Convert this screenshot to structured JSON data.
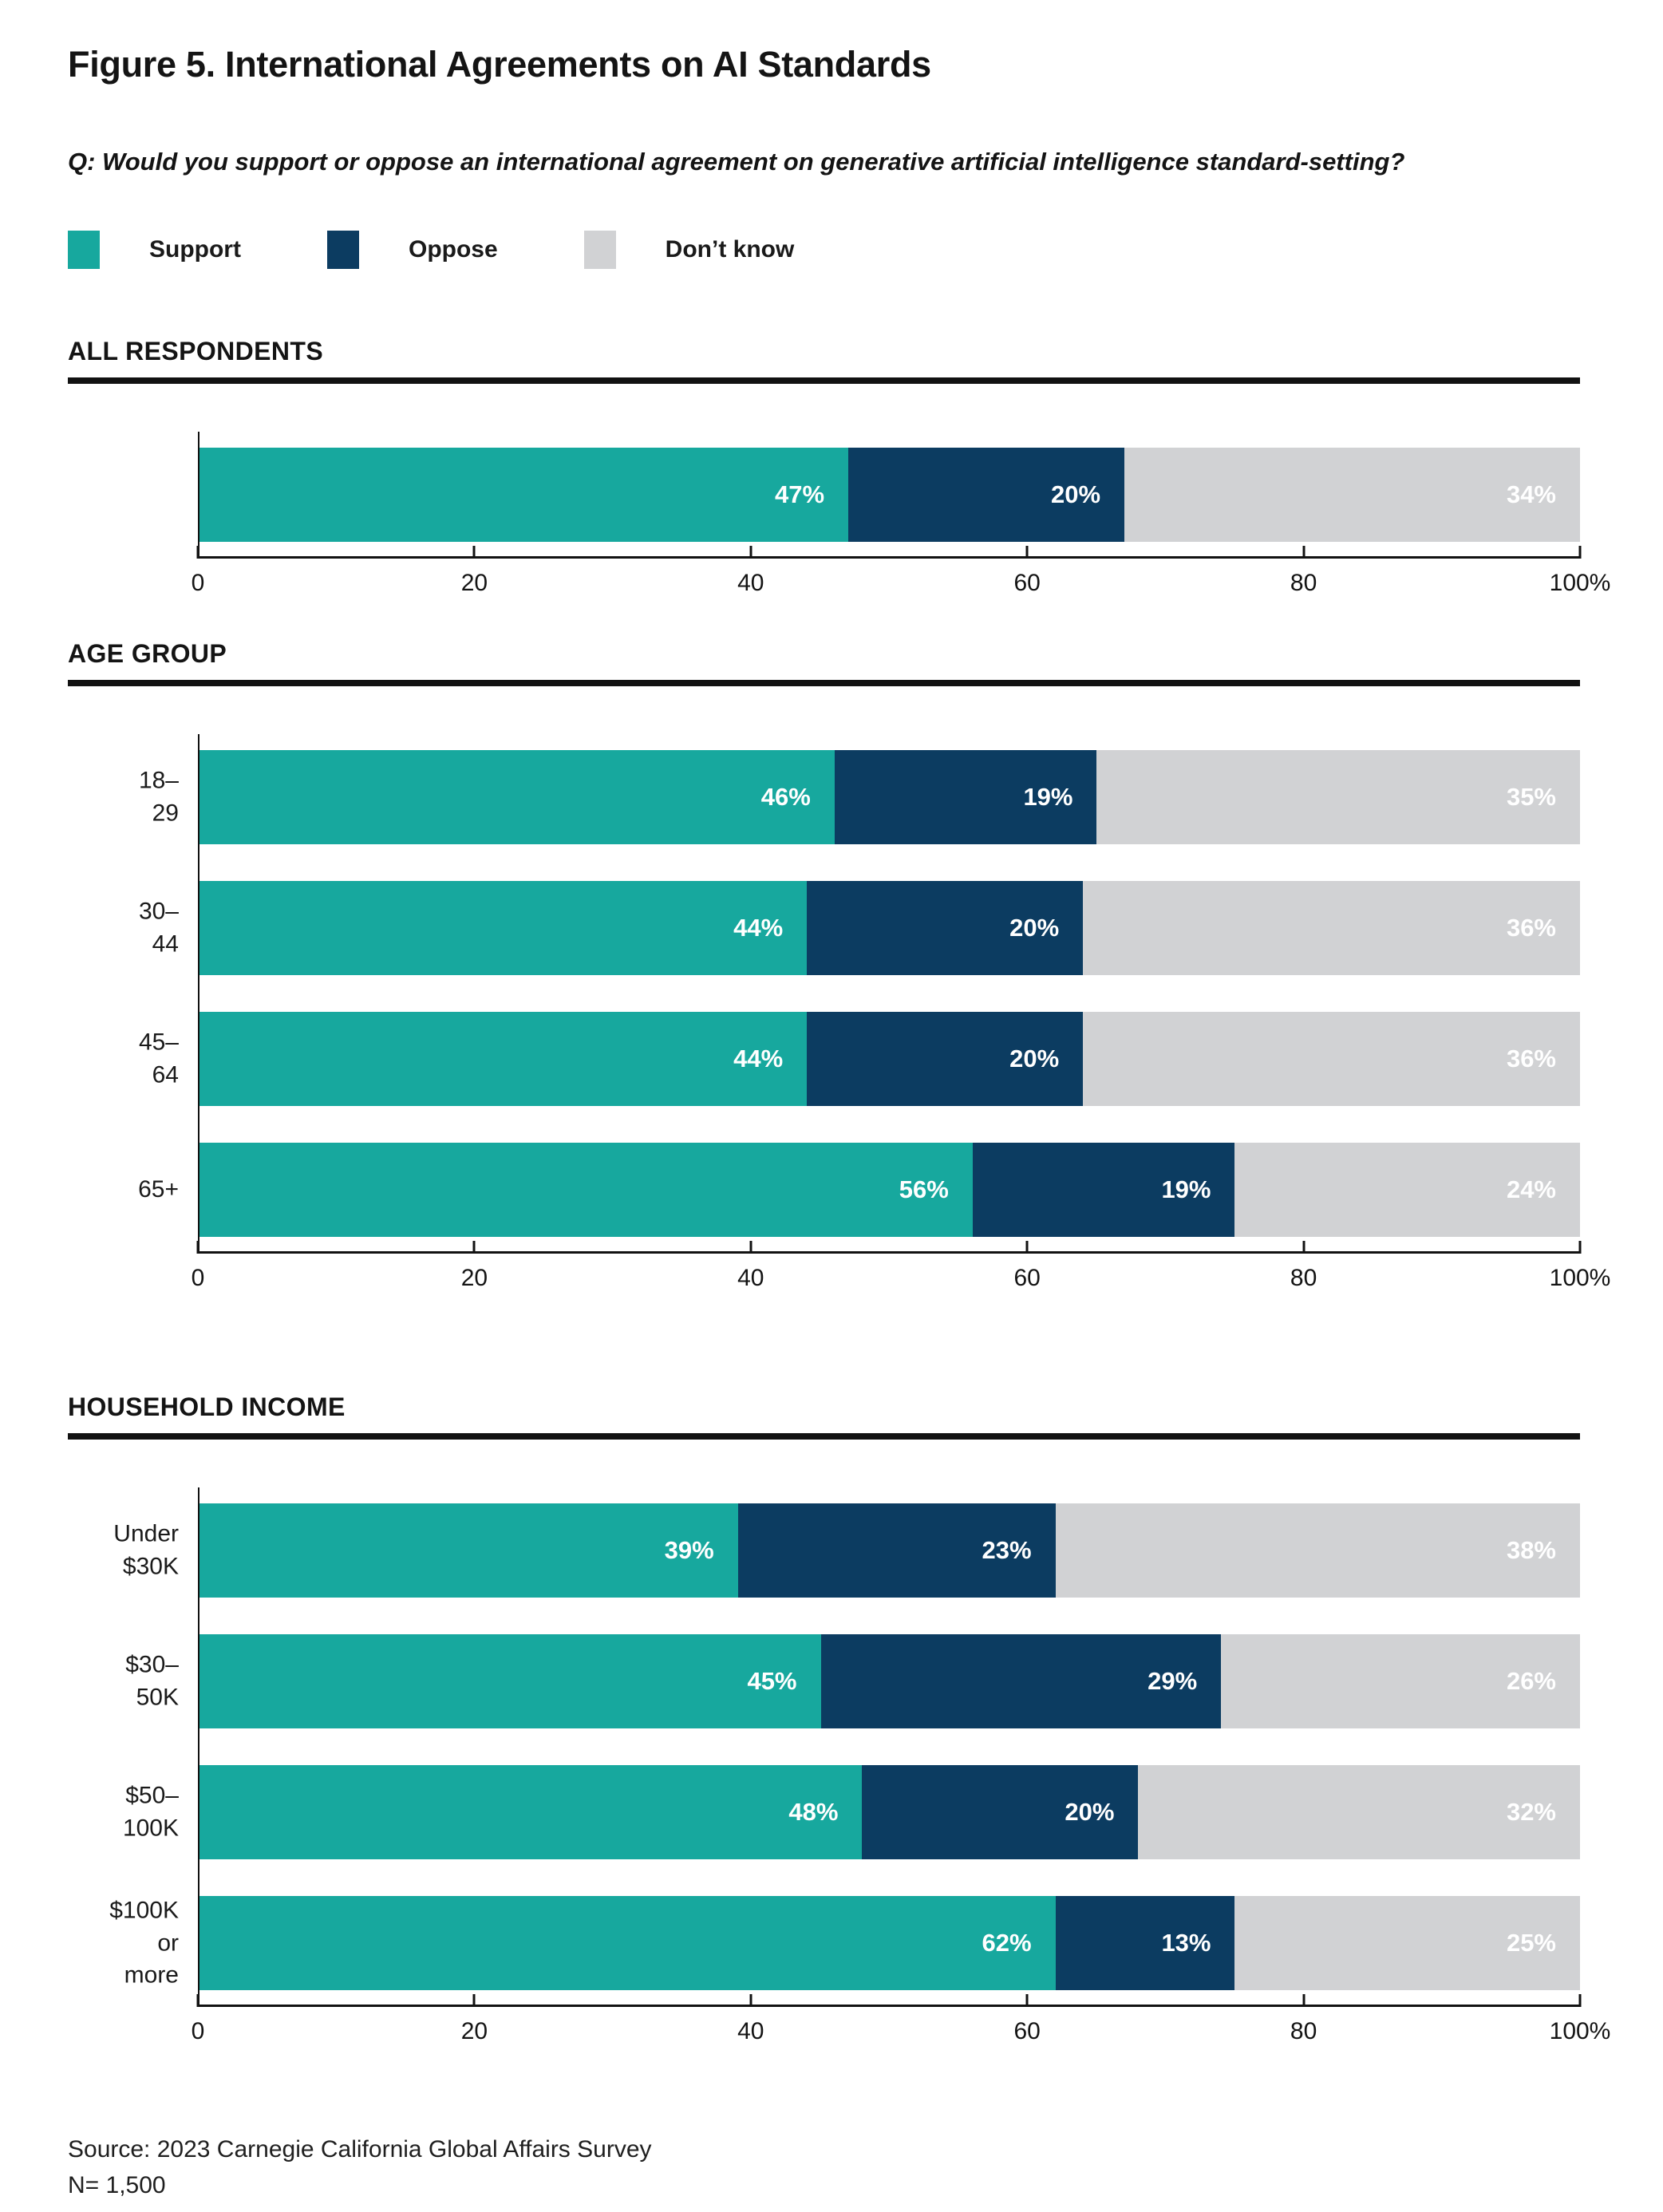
{
  "title": "Figure 5. International Agreements on AI Standards",
  "question": "Q: Would you support or oppose an international agreement on generative artificial intelligence standard-setting?",
  "colors": {
    "support": "#17A89E",
    "oppose": "#0C3C61",
    "dont_know": "#D1D2D4",
    "rule": "#121212",
    "value_label": "#ffffff"
  },
  "legend": [
    {
      "label": "Support",
      "color": "#17A89E"
    },
    {
      "label": "Oppose",
      "color": "#0C3C61"
    },
    {
      "label": "Don’t know",
      "color": "#D1D2D4"
    }
  ],
  "chart_data": [
    {
      "type": "bar",
      "orientation": "horizontal",
      "stacked": true,
      "title": "ALL RESPONDENTS",
      "categories": [
        ""
      ],
      "series": [
        {
          "name": "Support",
          "color": "#17A89E",
          "values": [
            47
          ]
        },
        {
          "name": "Oppose",
          "color": "#0C3C61",
          "values": [
            20
          ]
        },
        {
          "name": "Don’t know",
          "color": "#D1D2D4",
          "values": [
            34
          ]
        }
      ],
      "xlim": [
        0,
        100
      ],
      "grid": false,
      "legend_position": "top",
      "xtick_positions": [
        0,
        20,
        40,
        60,
        80,
        100
      ],
      "xtick_labels": [
        "0",
        "20",
        "40",
        "60",
        "80",
        "100%"
      ]
    },
    {
      "type": "bar",
      "orientation": "horizontal",
      "stacked": true,
      "title": "AGE GROUP",
      "categories": [
        "18–29",
        "30–44",
        "45–64",
        "65+"
      ],
      "series": [
        {
          "name": "Support",
          "color": "#17A89E",
          "values": [
            46,
            44,
            44,
            56
          ]
        },
        {
          "name": "Oppose",
          "color": "#0C3C61",
          "values": [
            19,
            20,
            20,
            19
          ]
        },
        {
          "name": "Don’t know",
          "color": "#D1D2D4",
          "values": [
            35,
            36,
            36,
            24
          ]
        }
      ],
      "xlim": [
        0,
        100
      ],
      "grid": false,
      "xtick_positions": [
        0,
        20,
        40,
        60,
        80,
        100
      ],
      "xtick_labels": [
        "0",
        "20",
        "40",
        "60",
        "80",
        "100%"
      ]
    },
    {
      "type": "bar",
      "orientation": "horizontal",
      "stacked": true,
      "title": "HOUSEHOLD INCOME",
      "categories": [
        "Under $30K",
        "$30–50K",
        "$50–100K",
        "$100K\nor more"
      ],
      "series": [
        {
          "name": "Support",
          "color": "#17A89E",
          "values": [
            39,
            45,
            48,
            62
          ]
        },
        {
          "name": "Oppose",
          "color": "#0C3C61",
          "values": [
            23,
            29,
            20,
            13
          ]
        },
        {
          "name": "Don’t know",
          "color": "#D1D2D4",
          "values": [
            38,
            26,
            32,
            25
          ]
        }
      ],
      "xlim": [
        0,
        100
      ],
      "grid": false,
      "xtick_positions": [
        0,
        20,
        40,
        60,
        80,
        100
      ],
      "xtick_labels": [
        "0",
        "20",
        "40",
        "60",
        "80",
        "100%"
      ]
    }
  ],
  "source": {
    "line1": "Source: 2023 Carnegie California Global Affairs Survey",
    "line2": "N= 1,500"
  }
}
